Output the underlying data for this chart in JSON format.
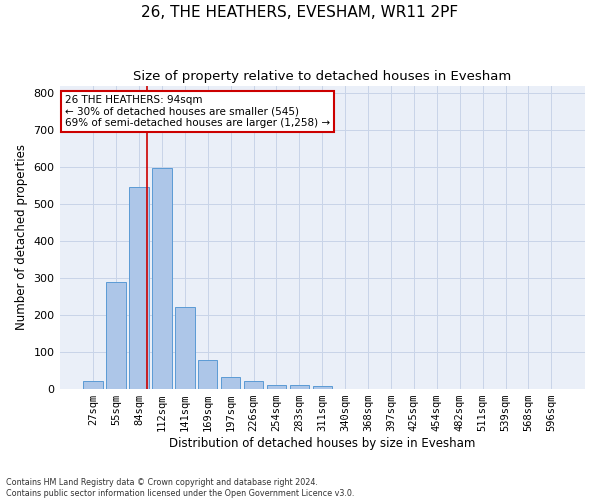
{
  "title": "26, THE HEATHERS, EVESHAM, WR11 2PF",
  "subtitle": "Size of property relative to detached houses in Evesham",
  "xlabel": "Distribution of detached houses by size in Evesham",
  "ylabel": "Number of detached properties",
  "footnote": "Contains HM Land Registry data © Crown copyright and database right 2024.\nContains public sector information licensed under the Open Government Licence v3.0.",
  "bar_labels": [
    "27sqm",
    "55sqm",
    "84sqm",
    "112sqm",
    "141sqm",
    "169sqm",
    "197sqm",
    "226sqm",
    "254sqm",
    "283sqm",
    "311sqm",
    "340sqm",
    "368sqm",
    "397sqm",
    "425sqm",
    "454sqm",
    "482sqm",
    "511sqm",
    "539sqm",
    "568sqm",
    "596sqm"
  ],
  "bar_values": [
    22,
    290,
    545,
    597,
    222,
    78,
    33,
    22,
    12,
    10,
    7,
    0,
    0,
    0,
    0,
    0,
    0,
    0,
    0,
    0,
    0
  ],
  "bar_color": "#adc6e8",
  "bar_edge_color": "#5b9bd5",
  "grid_color": "#c8d4e8",
  "background_color": "#eaeff8",
  "property_label": "26 THE HEATHERS: 94sqm",
  "annotation_line1": "← 30% of detached houses are smaller (545)",
  "annotation_line2": "69% of semi-detached houses are larger (1,258) →",
  "annotation_box_color": "#ffffff",
  "annotation_border_color": "#cc0000",
  "vline_color": "#cc0000",
  "vline_x": 2.36,
  "ylim": [
    0,
    820
  ],
  "yticks": [
    0,
    100,
    200,
    300,
    400,
    500,
    600,
    700,
    800
  ],
  "title_fontsize": 11,
  "subtitle_fontsize": 9.5,
  "xlabel_fontsize": 8.5,
  "ylabel_fontsize": 8.5,
  "tick_fontsize": 7.5,
  "annot_fontsize": 7.5
}
